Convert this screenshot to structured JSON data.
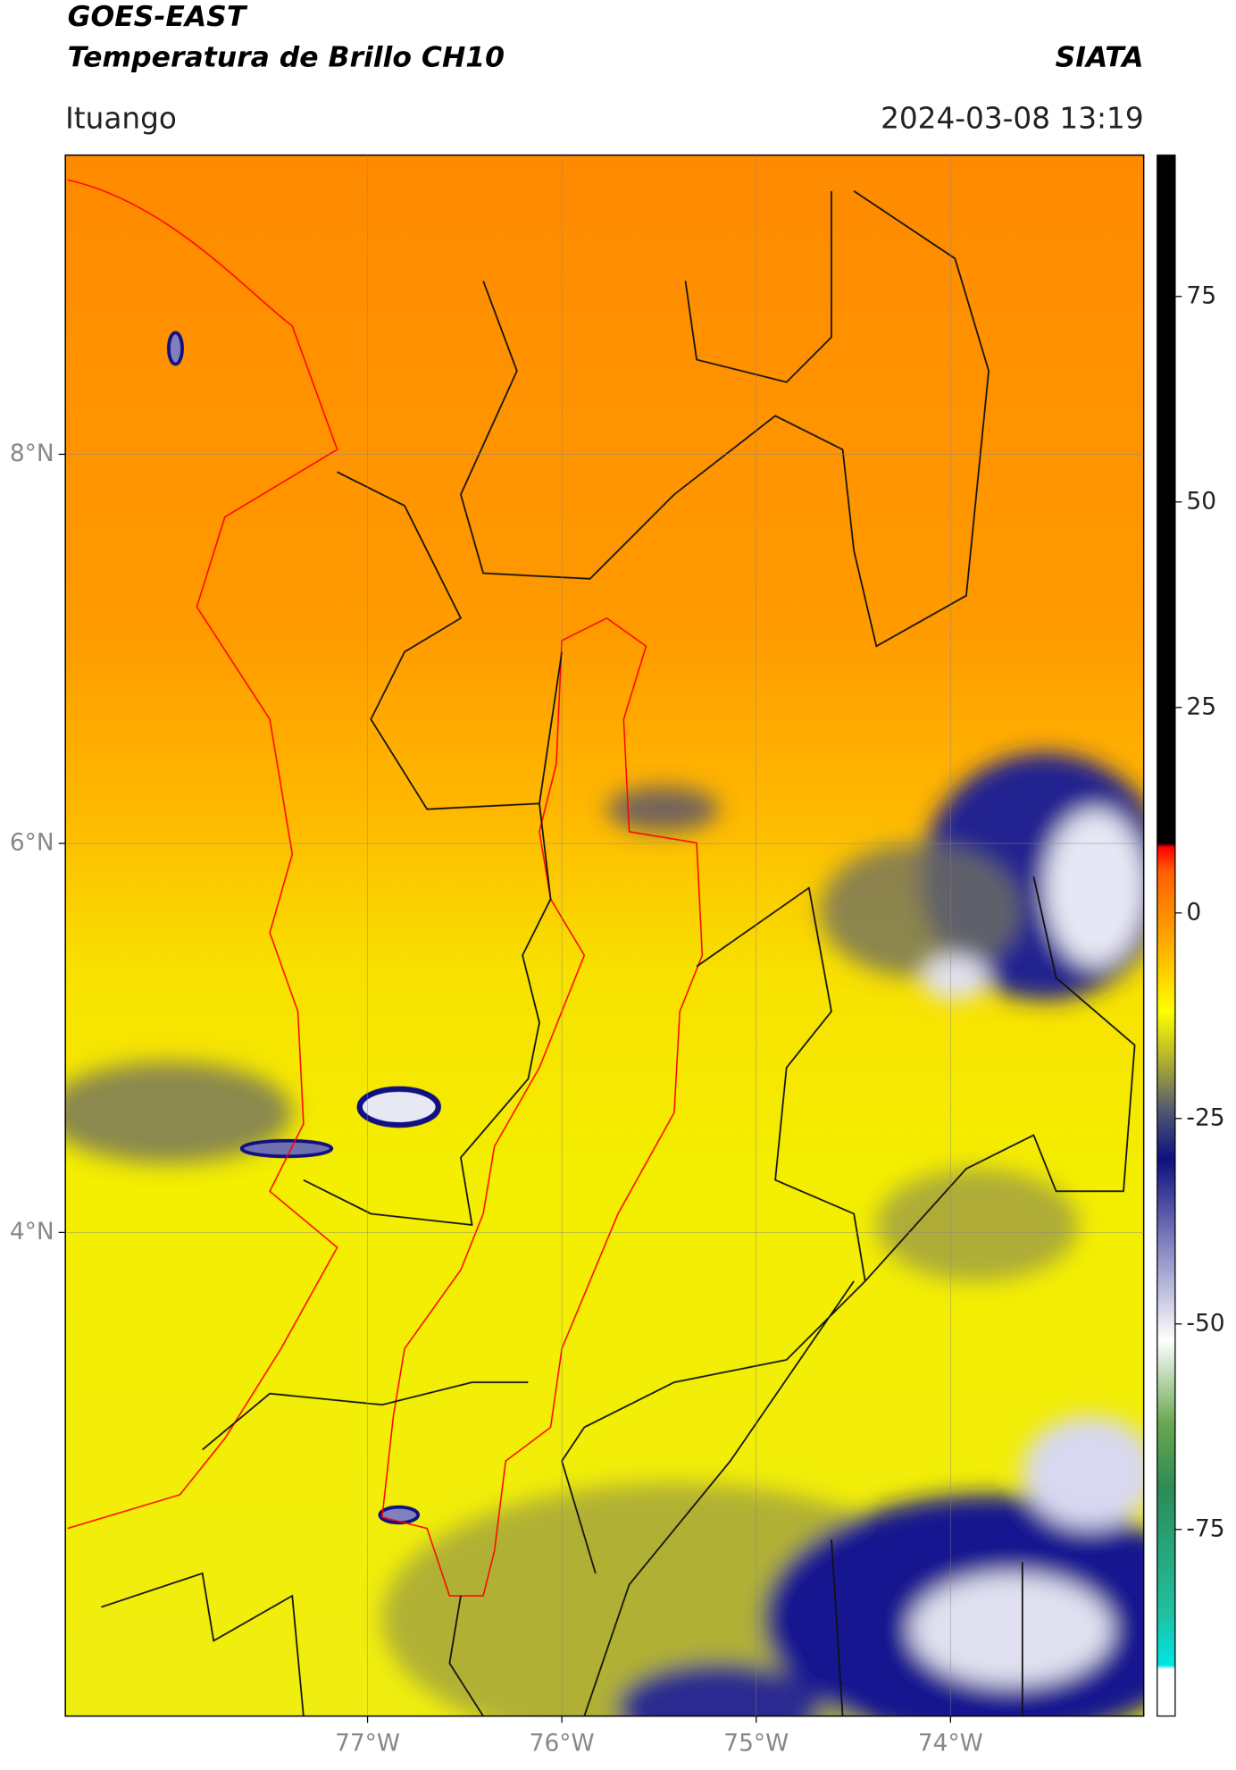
{
  "title": "GOES-EAST",
  "subtitle": "Temperatura de Brillo CH10",
  "brand": "SIATA",
  "location": "Ituango",
  "datetime": "2024-03-08 13:19",
  "map": {
    "xlim": [
      -78.555,
      -73.006
    ],
    "ylim": [
      1.514,
      9.538
    ],
    "xticks": [
      {
        "value": -77,
        "label": "77°W"
      },
      {
        "value": -76,
        "label": "76°W"
      },
      {
        "value": -75,
        "label": "75°W"
      },
      {
        "value": -74,
        "label": "74°W"
      }
    ],
    "yticks": [
      {
        "value": 4,
        "label": "4°N"
      },
      {
        "value": 6,
        "label": "6°N"
      },
      {
        "value": 8,
        "label": "8°N"
      }
    ],
    "grid": true
  },
  "colorbar": {
    "clim": [
      -97.7,
      92.2
    ],
    "ticks": [
      75,
      50,
      25,
      0,
      -25,
      -50,
      -75
    ],
    "stops": [
      {
        "value": -97.7,
        "color": "#ffffff"
      },
      {
        "value": -92,
        "color": "#ffffff"
      },
      {
        "value": -91.5,
        "color": "#00e5e5"
      },
      {
        "value": -85,
        "color": "#20c0a0"
      },
      {
        "value": -70,
        "color": "#2e8b57"
      },
      {
        "value": -62,
        "color": "#6aa84f"
      },
      {
        "value": -52,
        "color": "#ffffff"
      },
      {
        "value": -40,
        "color": "#8080c0"
      },
      {
        "value": -30,
        "color": "#101080"
      },
      {
        "value": -24,
        "color": "#505a70"
      },
      {
        "value": -18,
        "color": "#b0b030"
      },
      {
        "value": -12,
        "color": "#ffff00"
      },
      {
        "value": -3,
        "color": "#ffa500"
      },
      {
        "value": 5,
        "color": "#ff6000"
      },
      {
        "value": 8,
        "color": "#ff0000"
      },
      {
        "value": 8.5,
        "color": "#000000"
      },
      {
        "value": 92.2,
        "color": "#000000"
      }
    ]
  }
}
